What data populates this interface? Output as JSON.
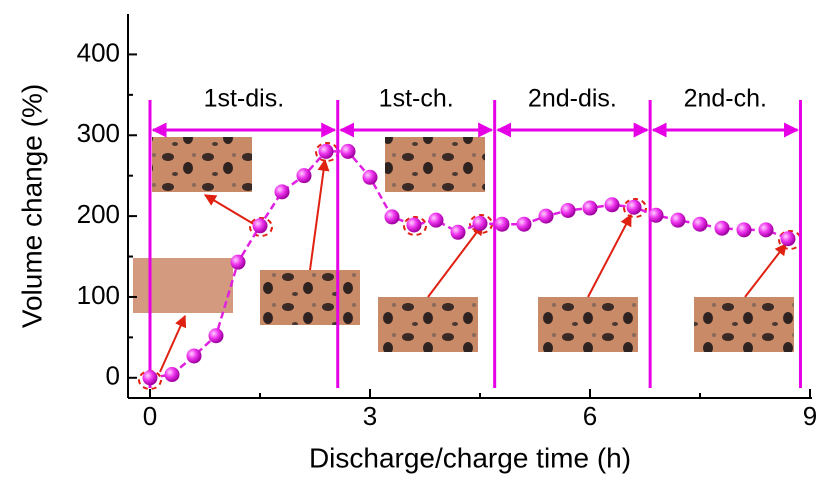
{
  "chart_data": {
    "type": "line",
    "x_label": "Discharge/charge time (h)",
    "y_label": "Volume change (%)",
    "x": [
      0,
      0.3,
      0.6,
      0.9,
      1.2,
      1.5,
      1.8,
      2.1,
      2.4,
      2.7,
      3.0,
      3.3,
      3.6,
      3.9,
      4.2,
      4.5,
      4.8,
      5.1,
      5.4,
      5.7,
      6.0,
      6.3,
      6.6,
      6.9,
      7.2,
      7.5,
      7.8,
      8.1,
      8.4,
      8.7
    ],
    "series": [
      {
        "color": "#e020e0",
        "values": [
          0,
          4,
          27,
          52,
          143,
          188,
          230,
          250,
          280,
          280,
          248,
          199,
          189,
          195,
          180,
          191,
          190,
          190,
          200,
          207,
          210,
          214,
          211,
          201,
          195,
          190,
          185,
          183,
          183,
          172
        ]
      }
    ],
    "stages": [
      "1st-dis.",
      "1st-ch.",
      "2nd-dis.",
      "2nd-ch."
    ],
    "stage_boundaries": [
      0,
      2.56,
      4.7,
      6.82,
      8.87
    ],
    "xlim": [
      -0.3,
      9
    ],
    "xticks": [
      0,
      3,
      6,
      9
    ],
    "xminorticks": [
      1.5,
      4.5,
      7.5
    ],
    "ylim": [
      -25,
      450
    ],
    "yticks": [
      0,
      100,
      200,
      300,
      400
    ],
    "yminorticks": [
      50,
      150,
      250,
      350
    ]
  }
}
